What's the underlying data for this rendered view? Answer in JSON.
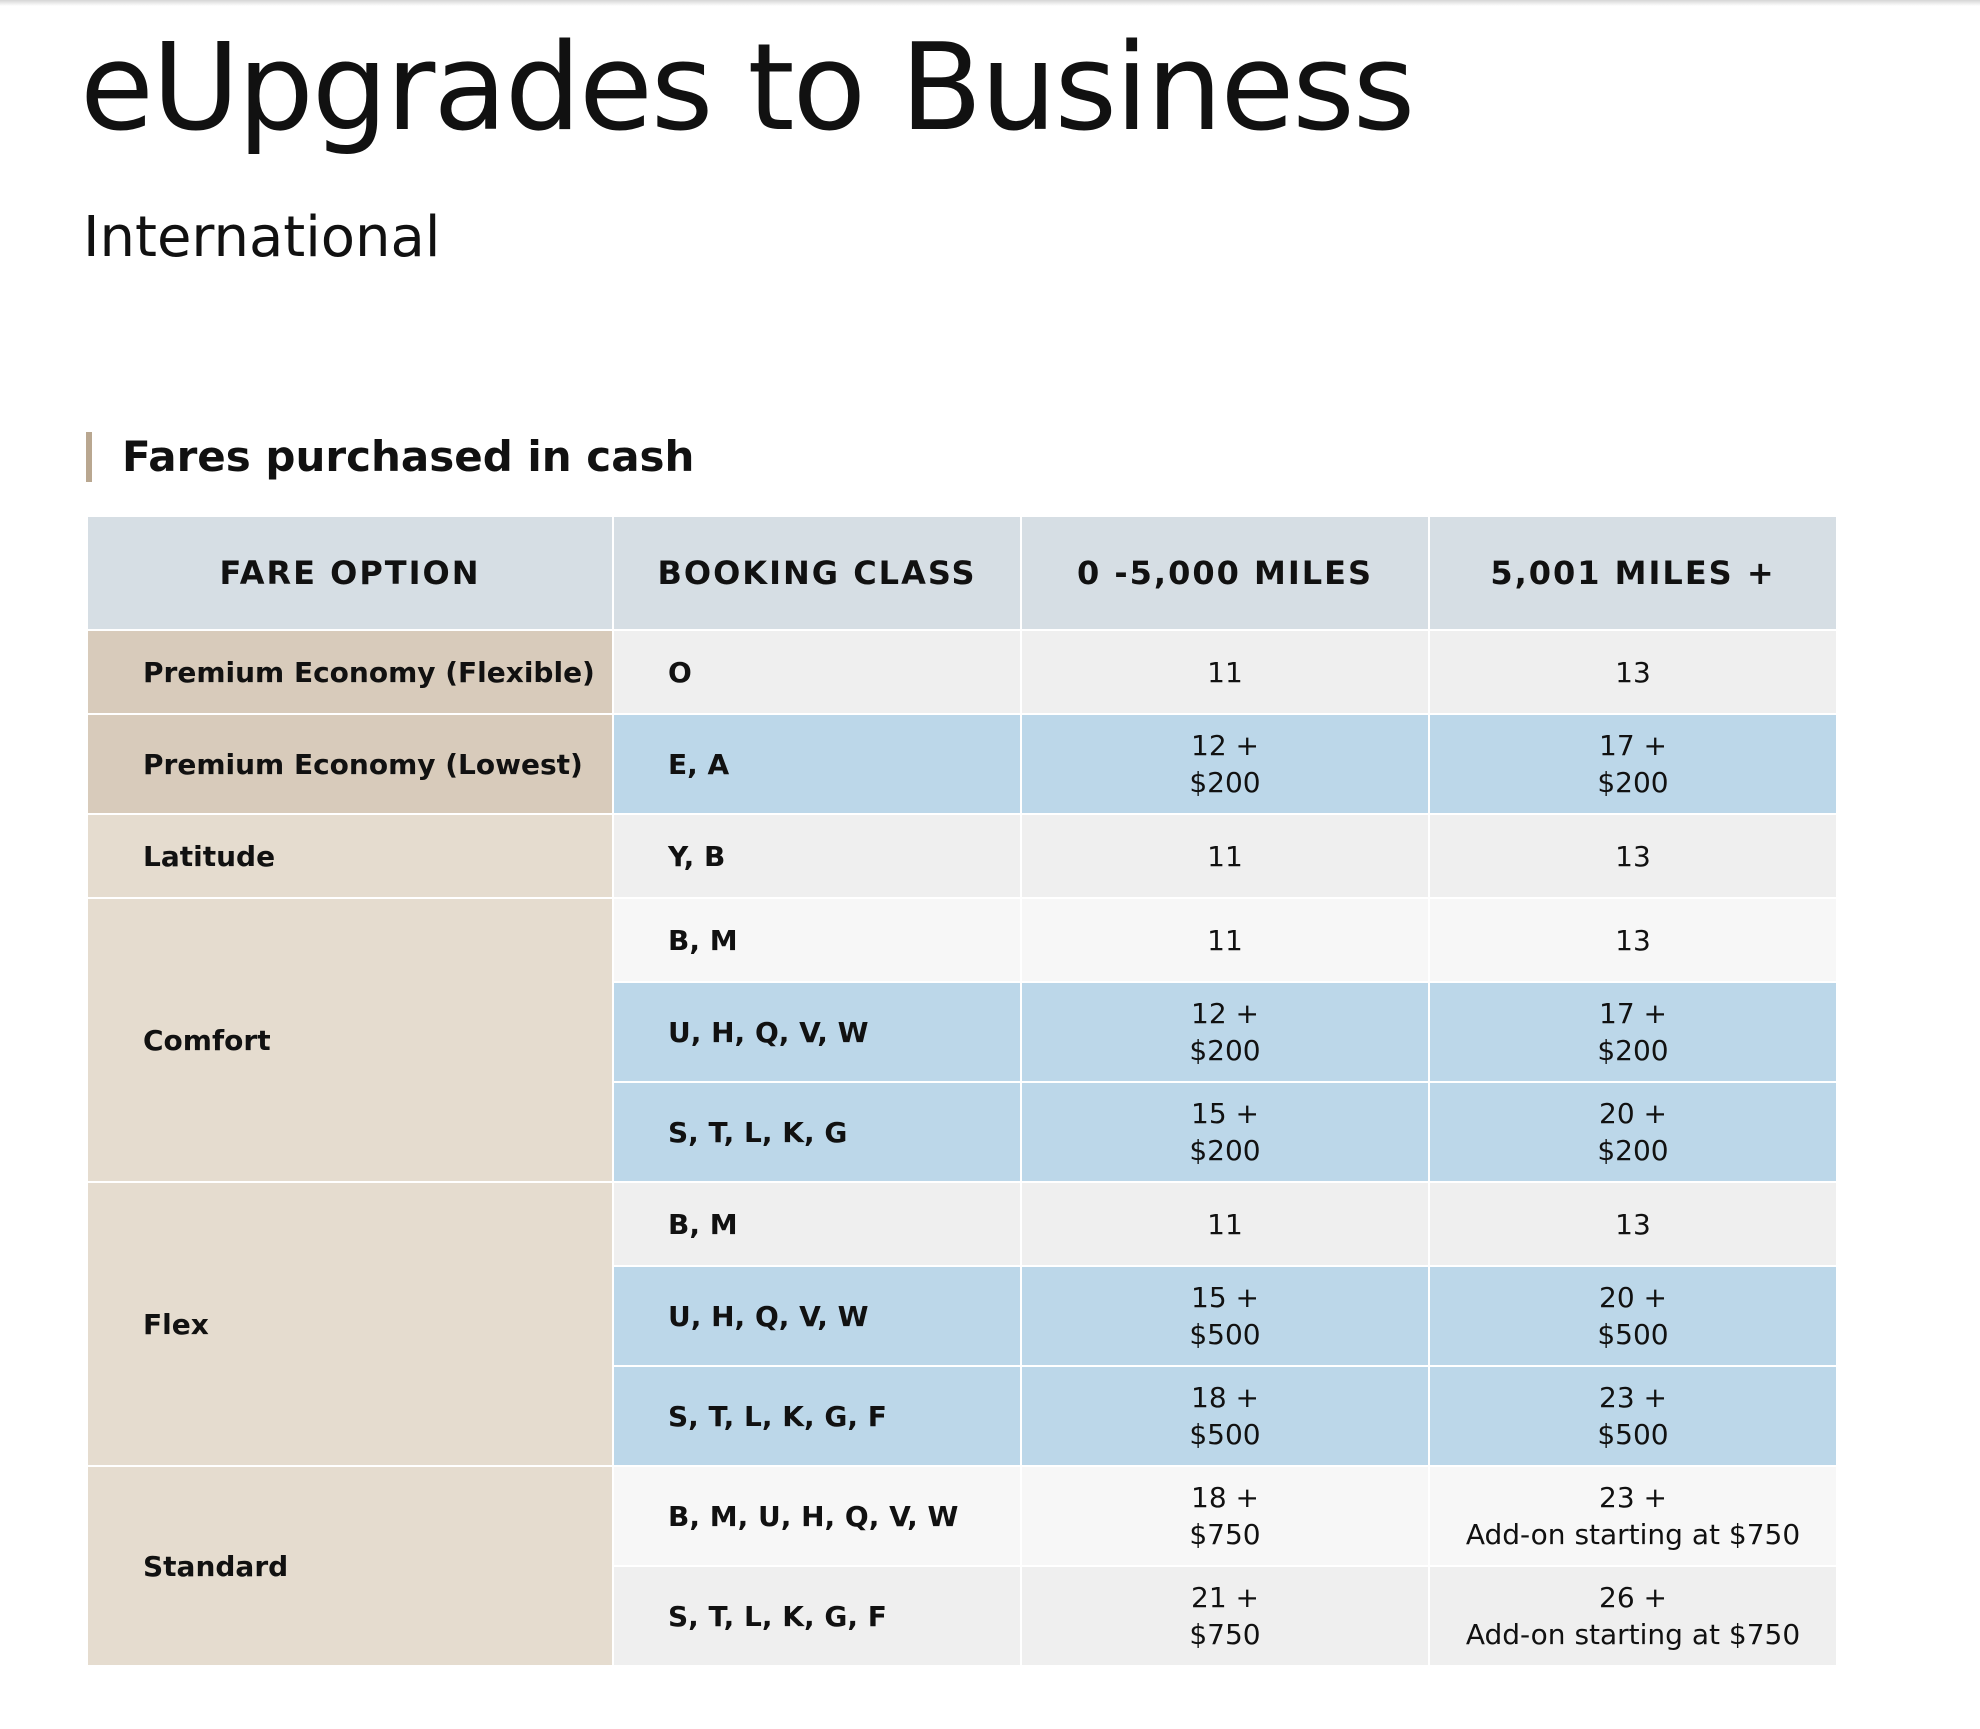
{
  "title": "eUpgrades to Business",
  "subtitle": "International",
  "section_heading": "Fares purchased in cash",
  "table": {
    "columns": [
      "FARE OPTION",
      "BOOKING CLASS",
      "0 -5,000 MILES",
      "5,001 MILES +"
    ],
    "groups": [
      {
        "fare_option": "Premium Economy (Flexible)",
        "rows": [
          {
            "booking_class": "O",
            "short_haul": [
              "11"
            ],
            "long_haul": [
              "13"
            ]
          }
        ]
      },
      {
        "fare_option": "Premium Economy (Lowest)",
        "rows": [
          {
            "booking_class": "E, A",
            "short_haul": [
              "12 +",
              "$200"
            ],
            "long_haul": [
              "17 +",
              "$200"
            ]
          }
        ]
      },
      {
        "fare_option": "Latitude",
        "rows": [
          {
            "booking_class": "Y, B",
            "short_haul": [
              "11"
            ],
            "long_haul": [
              "13"
            ]
          }
        ]
      },
      {
        "fare_option": "Comfort",
        "rows": [
          {
            "booking_class": "B, M",
            "short_haul": [
              "11"
            ],
            "long_haul": [
              "13"
            ]
          },
          {
            "booking_class": "U, H, Q, V, W",
            "short_haul": [
              "12 +",
              "$200"
            ],
            "long_haul": [
              "17 +",
              "$200"
            ]
          },
          {
            "booking_class": "S, T, L, K, G",
            "short_haul": [
              "15 +",
              "$200"
            ],
            "long_haul": [
              "20 +",
              "$200"
            ]
          }
        ]
      },
      {
        "fare_option": "Flex",
        "rows": [
          {
            "booking_class": "B, M",
            "short_haul": [
              "11"
            ],
            "long_haul": [
              "13"
            ]
          },
          {
            "booking_class": "U, H, Q, V, W",
            "short_haul": [
              "15 +",
              "$500"
            ],
            "long_haul": [
              "20 +",
              "$500"
            ]
          },
          {
            "booking_class": "S, T, L, K, G, F",
            "short_haul": [
              "18 +",
              "$500"
            ],
            "long_haul": [
              "23 +",
              "$500"
            ]
          }
        ]
      },
      {
        "fare_option": "Standard",
        "rows": [
          {
            "booking_class": "B, M, U, H, Q, V, W",
            "short_haul": [
              "18 +",
              "$750"
            ],
            "long_haul": [
              "23 +",
              "Add-on starting at $750"
            ]
          },
          {
            "booking_class": "S, T, L, K, G, F",
            "short_haul": [
              "21 +",
              "$750"
            ],
            "long_haul": [
              "26 +",
              "Add-on starting at $750"
            ]
          }
        ]
      }
    ]
  },
  "colors": {
    "header_bg": "#d6dee4",
    "fare_option_premium_bg": "#d8cbbb",
    "fare_option_bg": "#e5dccf",
    "row_gray": "#efefef",
    "row_white": "#f7f7f7",
    "row_blue": "#bcd7e9",
    "section_bar": "#b9a790"
  }
}
